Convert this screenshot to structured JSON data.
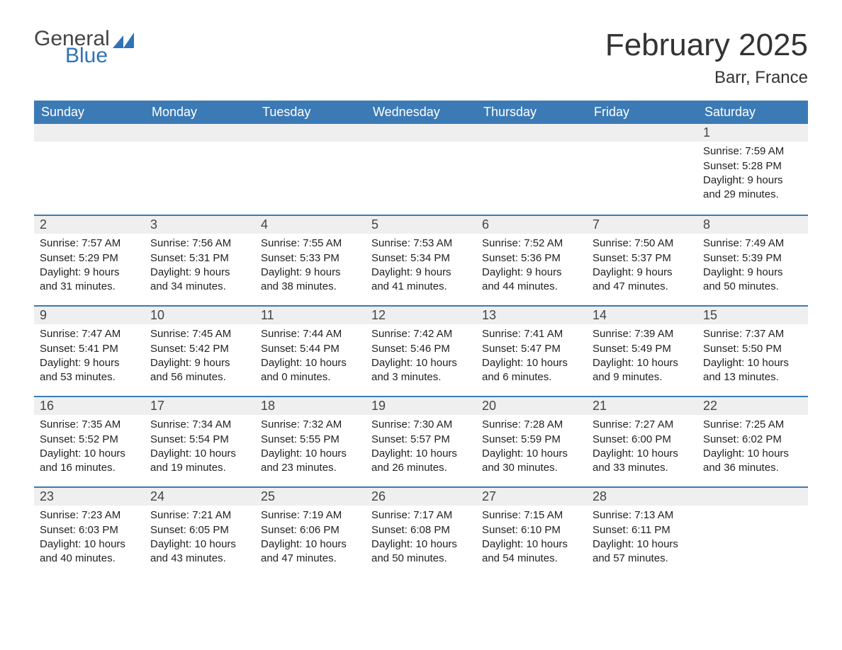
{
  "logo": {
    "word1": "General",
    "word2": "Blue",
    "icon_color": "#2f72b8",
    "text_color_1": "#444444",
    "text_color_2": "#2f72b8"
  },
  "title": "February 2025",
  "location": "Barr, France",
  "colors": {
    "header_bg": "#3c7ab5",
    "header_text": "#ffffff",
    "daynum_bg": "#efefef",
    "row_border": "#3c7ab5",
    "body_text": "#222222",
    "page_bg": "#ffffff"
  },
  "fonts": {
    "title_size_pt": 33,
    "location_size_pt": 18,
    "header_size_pt": 14,
    "daynum_size_pt": 14,
    "body_size_pt": 11
  },
  "layout": {
    "columns": 7,
    "rows": 5,
    "first_day_column_index": 6
  },
  "day_headers": [
    "Sunday",
    "Monday",
    "Tuesday",
    "Wednesday",
    "Thursday",
    "Friday",
    "Saturday"
  ],
  "days": [
    {
      "n": 1,
      "sunrise": "7:59 AM",
      "sunset": "5:28 PM",
      "daylight": "9 hours and 29 minutes."
    },
    {
      "n": 2,
      "sunrise": "7:57 AM",
      "sunset": "5:29 PM",
      "daylight": "9 hours and 31 minutes."
    },
    {
      "n": 3,
      "sunrise": "7:56 AM",
      "sunset": "5:31 PM",
      "daylight": "9 hours and 34 minutes."
    },
    {
      "n": 4,
      "sunrise": "7:55 AM",
      "sunset": "5:33 PM",
      "daylight": "9 hours and 38 minutes."
    },
    {
      "n": 5,
      "sunrise": "7:53 AM",
      "sunset": "5:34 PM",
      "daylight": "9 hours and 41 minutes."
    },
    {
      "n": 6,
      "sunrise": "7:52 AM",
      "sunset": "5:36 PM",
      "daylight": "9 hours and 44 minutes."
    },
    {
      "n": 7,
      "sunrise": "7:50 AM",
      "sunset": "5:37 PM",
      "daylight": "9 hours and 47 minutes."
    },
    {
      "n": 8,
      "sunrise": "7:49 AM",
      "sunset": "5:39 PM",
      "daylight": "9 hours and 50 minutes."
    },
    {
      "n": 9,
      "sunrise": "7:47 AM",
      "sunset": "5:41 PM",
      "daylight": "9 hours and 53 minutes."
    },
    {
      "n": 10,
      "sunrise": "7:45 AM",
      "sunset": "5:42 PM",
      "daylight": "9 hours and 56 minutes."
    },
    {
      "n": 11,
      "sunrise": "7:44 AM",
      "sunset": "5:44 PM",
      "daylight": "10 hours and 0 minutes."
    },
    {
      "n": 12,
      "sunrise": "7:42 AM",
      "sunset": "5:46 PM",
      "daylight": "10 hours and 3 minutes."
    },
    {
      "n": 13,
      "sunrise": "7:41 AM",
      "sunset": "5:47 PM",
      "daylight": "10 hours and 6 minutes."
    },
    {
      "n": 14,
      "sunrise": "7:39 AM",
      "sunset": "5:49 PM",
      "daylight": "10 hours and 9 minutes."
    },
    {
      "n": 15,
      "sunrise": "7:37 AM",
      "sunset": "5:50 PM",
      "daylight": "10 hours and 13 minutes."
    },
    {
      "n": 16,
      "sunrise": "7:35 AM",
      "sunset": "5:52 PM",
      "daylight": "10 hours and 16 minutes."
    },
    {
      "n": 17,
      "sunrise": "7:34 AM",
      "sunset": "5:54 PM",
      "daylight": "10 hours and 19 minutes."
    },
    {
      "n": 18,
      "sunrise": "7:32 AM",
      "sunset": "5:55 PM",
      "daylight": "10 hours and 23 minutes."
    },
    {
      "n": 19,
      "sunrise": "7:30 AM",
      "sunset": "5:57 PM",
      "daylight": "10 hours and 26 minutes."
    },
    {
      "n": 20,
      "sunrise": "7:28 AM",
      "sunset": "5:59 PM",
      "daylight": "10 hours and 30 minutes."
    },
    {
      "n": 21,
      "sunrise": "7:27 AM",
      "sunset": "6:00 PM",
      "daylight": "10 hours and 33 minutes."
    },
    {
      "n": 22,
      "sunrise": "7:25 AM",
      "sunset": "6:02 PM",
      "daylight": "10 hours and 36 minutes."
    },
    {
      "n": 23,
      "sunrise": "7:23 AM",
      "sunset": "6:03 PM",
      "daylight": "10 hours and 40 minutes."
    },
    {
      "n": 24,
      "sunrise": "7:21 AM",
      "sunset": "6:05 PM",
      "daylight": "10 hours and 43 minutes."
    },
    {
      "n": 25,
      "sunrise": "7:19 AM",
      "sunset": "6:06 PM",
      "daylight": "10 hours and 47 minutes."
    },
    {
      "n": 26,
      "sunrise": "7:17 AM",
      "sunset": "6:08 PM",
      "daylight": "10 hours and 50 minutes."
    },
    {
      "n": 27,
      "sunrise": "7:15 AM",
      "sunset": "6:10 PM",
      "daylight": "10 hours and 54 minutes."
    },
    {
      "n": 28,
      "sunrise": "7:13 AM",
      "sunset": "6:11 PM",
      "daylight": "10 hours and 57 minutes."
    }
  ],
  "labels": {
    "sunrise": "Sunrise:",
    "sunset": "Sunset:",
    "daylight": "Daylight:"
  }
}
